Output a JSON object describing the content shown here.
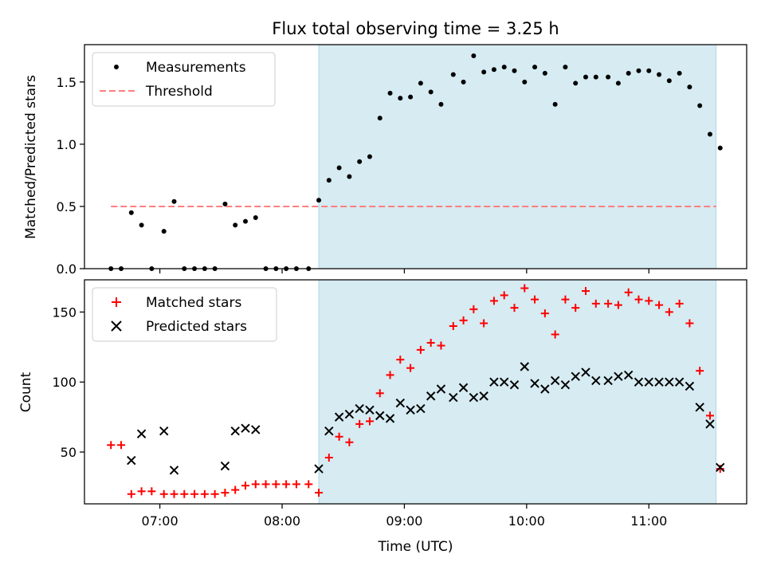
{
  "chart_data": [
    {
      "type": "scatter",
      "title": "Flux total observing time = 3.25 h",
      "ylabel": "Matched/Predicted stars",
      "xlim": [
        "06:23",
        "11:48"
      ],
      "ylim": [
        0,
        1.8
      ],
      "yticks": [
        0,
        0.5,
        1.0,
        1.5
      ],
      "ytick_labels": [
        "0.0",
        "0.5",
        "1.0",
        "1.5"
      ],
      "xticks": [
        "07:00",
        "08:00",
        "09:00",
        "10:00",
        "11:00"
      ],
      "shaded_region": {
        "x0": "08:18",
        "x1": "11:33",
        "color": "#add8e6"
      },
      "legend_position": "upper-left",
      "threshold": {
        "name": "Threshold",
        "value": 0.5,
        "x0": "06:36",
        "x1": "11:33",
        "color": "#ff7f7f",
        "style": "dashed"
      },
      "series": [
        {
          "name": "Measurements",
          "color": "#000000",
          "marker": "dot",
          "points": [
            [
              "06:36",
              0
            ],
            [
              "06:41",
              0
            ],
            [
              "06:46",
              0.45
            ],
            [
              "06:51",
              0.35
            ],
            [
              "06:56",
              0
            ],
            [
              "07:02",
              0.3
            ],
            [
              "07:07",
              0.54
            ],
            [
              "07:12",
              0
            ],
            [
              "07:17",
              0
            ],
            [
              "07:22",
              0
            ],
            [
              "07:27",
              0
            ],
            [
              "07:32",
              0.52
            ],
            [
              "07:37",
              0.35
            ],
            [
              "07:42",
              0.38
            ],
            [
              "07:47",
              0.41
            ],
            [
              "07:52",
              0
            ],
            [
              "07:57",
              0
            ],
            [
              "08:02",
              0
            ],
            [
              "08:07",
              0
            ],
            [
              "08:13",
              0
            ],
            [
              "08:18",
              0.55
            ],
            [
              "08:23",
              0.71
            ],
            [
              "08:28",
              0.81
            ],
            [
              "08:33",
              0.74
            ],
            [
              "08:38",
              0.86
            ],
            [
              "08:43",
              0.9
            ],
            [
              "08:48",
              1.21
            ],
            [
              "08:53",
              1.41
            ],
            [
              "08:58",
              1.37
            ],
            [
              "09:03",
              1.38
            ],
            [
              "09:08",
              1.49
            ],
            [
              "09:13",
              1.42
            ],
            [
              "09:18",
              1.32
            ],
            [
              "09:24",
              1.56
            ],
            [
              "09:29",
              1.5
            ],
            [
              "09:34",
              1.71
            ],
            [
              "09:39",
              1.58
            ],
            [
              "09:44",
              1.6
            ],
            [
              "09:49",
              1.62
            ],
            [
              "09:54",
              1.59
            ],
            [
              "09:59",
              1.5
            ],
            [
              "10:04",
              1.62
            ],
            [
              "10:09",
              1.57
            ],
            [
              "10:14",
              1.32
            ],
            [
              "10:19",
              1.62
            ],
            [
              "10:24",
              1.49
            ],
            [
              "10:29",
              1.54
            ],
            [
              "10:34",
              1.54
            ],
            [
              "10:40",
              1.54
            ],
            [
              "10:45",
              1.49
            ],
            [
              "10:50",
              1.57
            ],
            [
              "10:55",
              1.59
            ],
            [
              "11:00",
              1.59
            ],
            [
              "11:05",
              1.56
            ],
            [
              "11:10",
              1.51
            ],
            [
              "11:15",
              1.57
            ],
            [
              "11:20",
              1.46
            ],
            [
              "11:25",
              1.31
            ],
            [
              "11:30",
              1.08
            ],
            [
              "11:35",
              0.97
            ]
          ]
        }
      ]
    },
    {
      "type": "scatter",
      "xlabel": "Time (UTC)",
      "ylabel": "Count",
      "xlim": [
        "06:23",
        "11:48"
      ],
      "ylim": [
        13,
        173
      ],
      "yticks": [
        50,
        100,
        150
      ],
      "ytick_labels": [
        "50",
        "100",
        "150"
      ],
      "xticks": [
        "07:00",
        "08:00",
        "09:00",
        "10:00",
        "11:00"
      ],
      "xtick_labels": [
        "07:00",
        "08:00",
        "09:00",
        "10:00",
        "11:00"
      ],
      "shaded_region": {
        "x0": "08:18",
        "x1": "11:33",
        "color": "#add8e6"
      },
      "legend_position": "upper-left",
      "series": [
        {
          "name": "Matched stars",
          "color": "#ff0000",
          "marker": "plus",
          "points": [
            [
              "06:36",
              55
            ],
            [
              "06:41",
              55
            ],
            [
              "06:46",
              20
            ],
            [
              "06:51",
              22
            ],
            [
              "06:56",
              22
            ],
            [
              "07:02",
              20
            ],
            [
              "07:07",
              20
            ],
            [
              "07:12",
              20
            ],
            [
              "07:17",
              20
            ],
            [
              "07:22",
              20
            ],
            [
              "07:27",
              20
            ],
            [
              "07:32",
              21
            ],
            [
              "07:37",
              23
            ],
            [
              "07:42",
              26
            ],
            [
              "07:47",
              27
            ],
            [
              "07:52",
              27
            ],
            [
              "07:57",
              27
            ],
            [
              "08:02",
              27
            ],
            [
              "08:07",
              27
            ],
            [
              "08:13",
              27
            ],
            [
              "08:18",
              21
            ],
            [
              "08:23",
              46
            ],
            [
              "08:28",
              61
            ],
            [
              "08:33",
              57
            ],
            [
              "08:38",
              70
            ],
            [
              "08:43",
              72
            ],
            [
              "08:48",
              92
            ],
            [
              "08:53",
              105
            ],
            [
              "08:58",
              116
            ],
            [
              "09:03",
              110
            ],
            [
              "09:08",
              123
            ],
            [
              "09:13",
              128
            ],
            [
              "09:18",
              126
            ],
            [
              "09:24",
              140
            ],
            [
              "09:29",
              144
            ],
            [
              "09:34",
              152
            ],
            [
              "09:39",
              142
            ],
            [
              "09:44",
              158
            ],
            [
              "09:49",
              162
            ],
            [
              "09:54",
              153
            ],
            [
              "09:59",
              167
            ],
            [
              "10:04",
              159
            ],
            [
              "10:09",
              149
            ],
            [
              "10:14",
              134
            ],
            [
              "10:19",
              159
            ],
            [
              "10:24",
              153
            ],
            [
              "10:29",
              165
            ],
            [
              "10:34",
              156
            ],
            [
              "10:40",
              156
            ],
            [
              "10:45",
              155
            ],
            [
              "10:50",
              164
            ],
            [
              "10:55",
              159
            ],
            [
              "11:00",
              158
            ],
            [
              "11:05",
              155
            ],
            [
              "11:10",
              150
            ],
            [
              "11:15",
              156
            ],
            [
              "11:20",
              142
            ],
            [
              "11:25",
              108
            ],
            [
              "11:30",
              76
            ],
            [
              "11:35",
              38
            ]
          ]
        },
        {
          "name": "Predicted stars",
          "color": "#000000",
          "marker": "cross",
          "points": [
            [
              "06:46",
              44
            ],
            [
              "06:51",
              63
            ],
            [
              "07:02",
              65
            ],
            [
              "07:07",
              37
            ],
            [
              "07:32",
              40
            ],
            [
              "07:37",
              65
            ],
            [
              "07:42",
              67
            ],
            [
              "07:47",
              66
            ],
            [
              "08:18",
              38
            ],
            [
              "08:23",
              65
            ],
            [
              "08:28",
              75
            ],
            [
              "08:33",
              77
            ],
            [
              "08:38",
              81
            ],
            [
              "08:43",
              80
            ],
            [
              "08:48",
              76
            ],
            [
              "08:53",
              74
            ],
            [
              "08:58",
              85
            ],
            [
              "09:03",
              80
            ],
            [
              "09:08",
              81
            ],
            [
              "09:13",
              90
            ],
            [
              "09:18",
              95
            ],
            [
              "09:24",
              89
            ],
            [
              "09:29",
              96
            ],
            [
              "09:34",
              89
            ],
            [
              "09:39",
              90
            ],
            [
              "09:44",
              100
            ],
            [
              "09:49",
              100
            ],
            [
              "09:54",
              98
            ],
            [
              "09:59",
              111
            ],
            [
              "10:04",
              99
            ],
            [
              "10:09",
              95
            ],
            [
              "10:14",
              101
            ],
            [
              "10:19",
              98
            ],
            [
              "10:24",
              104
            ],
            [
              "10:29",
              107
            ],
            [
              "10:34",
              101
            ],
            [
              "10:40",
              101
            ],
            [
              "10:45",
              104
            ],
            [
              "10:50",
              105
            ],
            [
              "10:55",
              100
            ],
            [
              "11:00",
              100
            ],
            [
              "11:05",
              100
            ],
            [
              "11:10",
              100
            ],
            [
              "11:15",
              100
            ],
            [
              "11:20",
              97
            ],
            [
              "11:25",
              82
            ],
            [
              "11:30",
              70
            ],
            [
              "11:35",
              39
            ]
          ]
        }
      ]
    }
  ]
}
